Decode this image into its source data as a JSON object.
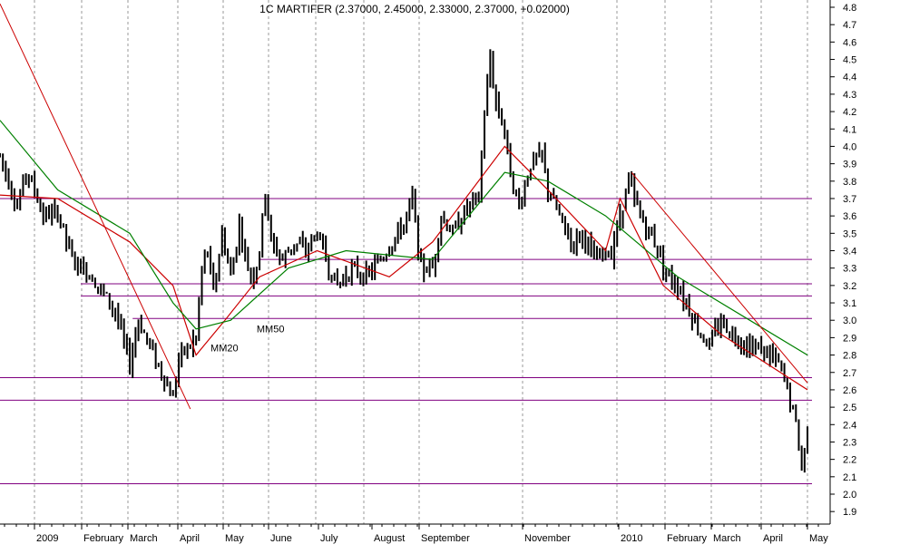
{
  "chart_data": {
    "type": "candlestick",
    "title": "1C MARTIFER (2.37000, 2.45000, 2.33000, 2.37000, +0.02000)",
    "colors": {
      "background": "#ffffff",
      "grid": "#9a9a9a",
      "price": "#000000",
      "ma20": "#cc0000",
      "ma50": "#008000",
      "support_lines": "#800080",
      "trend_lines": "#cc0000"
    },
    "grid": true,
    "y_axis": {
      "position": "right",
      "ylim": [
        1.85,
        4.85
      ]
    },
    "y_ticks": [
      "1.9",
      "2.0",
      "2.1",
      "2.2",
      "2.3",
      "2.4",
      "2.5",
      "2.6",
      "2.7",
      "2.8",
      "2.9",
      "3.0",
      "3.1",
      "3.2",
      "3.3",
      "3.4",
      "3.5",
      "3.6",
      "3.7",
      "3.8",
      "3.9",
      "4.0",
      "4.1",
      "4.2",
      "4.3",
      "4.4",
      "4.5",
      "4.6",
      "4.7",
      "4.8"
    ],
    "x_labels": [
      "2009",
      "February",
      "March",
      "April",
      "May",
      "June",
      "July",
      "August",
      "September",
      "November",
      "2010",
      "February",
      "March",
      "April",
      "May"
    ],
    "annotations": [
      {
        "text": "MM20",
        "x": 73,
        "y": 2.82,
        "color": "#cc0000"
      },
      {
        "text": "MM50",
        "x": 89,
        "y": 2.93,
        "color": "#008000"
      }
    ],
    "series": [
      {
        "name": "MM20",
        "points": [
          [
            0,
            3.72
          ],
          [
            20,
            3.7
          ],
          [
            45,
            3.45
          ],
          [
            60,
            3.2
          ],
          [
            68,
            2.8
          ],
          [
            78,
            3.0
          ],
          [
            90,
            3.25
          ],
          [
            110,
            3.4
          ],
          [
            135,
            3.25
          ],
          [
            150,
            3.45
          ],
          [
            175,
            4.0
          ],
          [
            190,
            3.75
          ],
          [
            210,
            3.4
          ],
          [
            215,
            3.7
          ],
          [
            230,
            3.2
          ],
          [
            250,
            2.92
          ],
          [
            280,
            2.6
          ]
        ]
      },
      {
        "name": "MM50",
        "points": [
          [
            0,
            4.15
          ],
          [
            20,
            3.75
          ],
          [
            45,
            3.5
          ],
          [
            60,
            3.1
          ],
          [
            68,
            2.95
          ],
          [
            80,
            3.0
          ],
          [
            100,
            3.3
          ],
          [
            120,
            3.4
          ],
          [
            150,
            3.35
          ],
          [
            175,
            3.85
          ],
          [
            190,
            3.8
          ],
          [
            210,
            3.6
          ],
          [
            235,
            3.25
          ],
          [
            265,
            2.95
          ],
          [
            280,
            2.8
          ]
        ]
      }
    ],
    "horizontal_levels": [
      {
        "y": 3.7,
        "x_from": 0,
        "x_to": 280
      },
      {
        "y": 3.35,
        "x_from": 90,
        "x_to": 280
      },
      {
        "y": 3.21,
        "x_from": 28,
        "x_to": 280
      },
      {
        "y": 3.14,
        "x_from": 28,
        "x_to": 280
      },
      {
        "y": 3.01,
        "x_from": 46,
        "x_to": 280
      },
      {
        "y": 2.67,
        "x_from": 0,
        "x_to": 280
      },
      {
        "y": 2.54,
        "x_from": 0,
        "x_to": 280
      },
      {
        "y": 2.06,
        "x_from": 0,
        "x_to": 280
      }
    ],
    "trend_lines": [
      {
        "from": [
          0,
          4.82
        ],
        "to": [
          66,
          2.49
        ]
      },
      {
        "from": [
          219,
          3.85
        ],
        "to": [
          280,
          2.64
        ]
      }
    ],
    "price_path": [
      [
        0,
        3.95
      ],
      [
        3,
        3.8
      ],
      [
        6,
        3.65
      ],
      [
        9,
        3.85
      ],
      [
        12,
        3.75
      ],
      [
        15,
        3.6
      ],
      [
        20,
        3.62
      ],
      [
        25,
        3.35
      ],
      [
        32,
        3.25
      ],
      [
        40,
        3.05
      ],
      [
        45,
        2.75
      ],
      [
        48,
        3.0
      ],
      [
        52,
        2.85
      ],
      [
        56,
        2.7
      ],
      [
        60,
        2.55
      ],
      [
        62,
        2.8
      ],
      [
        65,
        2.83
      ],
      [
        68,
        2.9
      ],
      [
        70,
        3.3
      ],
      [
        72,
        3.4
      ],
      [
        74,
        3.15
      ],
      [
        77,
        3.5
      ],
      [
        80,
        3.25
      ],
      [
        83,
        3.55
      ],
      [
        86,
        3.3
      ],
      [
        88,
        3.25
      ],
      [
        90,
        3.4
      ],
      [
        92,
        3.75
      ],
      [
        94,
        3.45
      ],
      [
        98,
        3.35
      ],
      [
        102,
        3.45
      ],
      [
        106,
        3.4
      ],
      [
        110,
        3.5
      ],
      [
        114,
        3.3
      ],
      [
        117,
        3.2
      ],
      [
        122,
        3.3
      ],
      [
        127,
        3.25
      ],
      [
        132,
        3.35
      ],
      [
        136,
        3.45
      ],
      [
        140,
        3.55
      ],
      [
        143,
        3.7
      ],
      [
        146,
        3.3
      ],
      [
        150,
        3.3
      ],
      [
        153,
        3.6
      ],
      [
        157,
        3.5
      ],
      [
        162,
        3.65
      ],
      [
        166,
        3.7
      ],
      [
        168,
        4.2
      ],
      [
        170,
        4.5
      ],
      [
        172,
        4.25
      ],
      [
        175,
        4.1
      ],
      [
        177,
        3.85
      ],
      [
        180,
        3.65
      ],
      [
        184,
        3.9
      ],
      [
        188,
        3.95
      ],
      [
        190,
        3.75
      ],
      [
        194,
        3.6
      ],
      [
        198,
        3.45
      ],
      [
        202,
        3.5
      ],
      [
        206,
        3.35
      ],
      [
        212,
        3.4
      ],
      [
        215,
        3.6
      ],
      [
        218,
        3.8
      ],
      [
        222,
        3.6
      ],
      [
        227,
        3.45
      ],
      [
        232,
        3.25
      ],
      [
        235,
        3.2
      ],
      [
        238,
        3.1
      ],
      [
        242,
        2.95
      ],
      [
        246,
        2.85
      ],
      [
        250,
        3.0
      ],
      [
        254,
        2.92
      ],
      [
        260,
        2.85
      ],
      [
        265,
        2.83
      ],
      [
        270,
        2.75
      ],
      [
        273,
        2.6
      ],
      [
        276,
        2.4
      ],
      [
        278,
        2.15
      ],
      [
        280,
        2.37
      ]
    ]
  }
}
